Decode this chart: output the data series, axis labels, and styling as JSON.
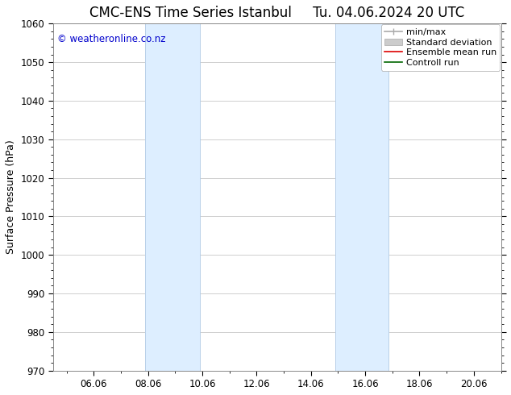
{
  "title_left": "CMC-ENS Time Series Istanbul",
  "title_right": "Tu. 04.06.2024 20 UTC",
  "ylabel": "Surface Pressure (hPa)",
  "ylim": [
    970,
    1060
  ],
  "yticks": [
    970,
    980,
    990,
    1000,
    1010,
    1020,
    1030,
    1040,
    1050,
    1060
  ],
  "xlim": [
    4.5,
    21.0
  ],
  "xtick_labels": [
    "06.06",
    "08.06",
    "10.06",
    "12.06",
    "14.06",
    "16.06",
    "18.06",
    "20.06"
  ],
  "xtick_positions": [
    6,
    8,
    10,
    12,
    14,
    16,
    18,
    20
  ],
  "shaded_bands": [
    {
      "x_start": 7.9,
      "x_end": 9.9
    },
    {
      "x_start": 14.9,
      "x_end": 16.85
    }
  ],
  "band_color": "#ddeeff",
  "band_edge_color": "#b8d0e8",
  "copyright_text": "© weatheronline.co.nz",
  "copyright_color": "#0000cc",
  "background_color": "#ffffff",
  "legend_items": [
    {
      "label": "min/max",
      "color": "#aaaaaa",
      "lw": 1.2
    },
    {
      "label": "Standard deviation",
      "color": "#cccccc",
      "lw": 6
    },
    {
      "label": "Ensemble mean run",
      "color": "#dd0000",
      "lw": 1.2
    },
    {
      "label": "Controll run",
      "color": "#006600",
      "lw": 1.2
    }
  ],
  "grid_color": "#bbbbbb",
  "title_fontsize": 12,
  "label_fontsize": 9,
  "tick_fontsize": 8.5,
  "copyright_fontsize": 8.5,
  "legend_fontsize": 8
}
